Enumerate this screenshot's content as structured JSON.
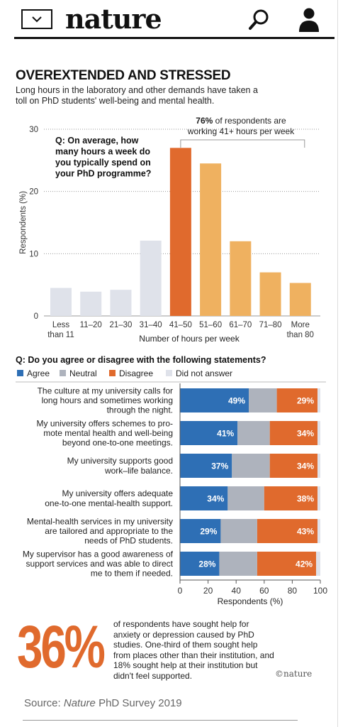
{
  "header": {
    "menu_icon": "chevron-down-icon",
    "logo": "nature",
    "search_icon": "search-icon",
    "user_icon": "user-icon"
  },
  "infographic": {
    "title": "OVEREXTENDED AND STRESSED",
    "subtitle": "Long hours in the laboratory and other demands have taken a toll on PhD students' well-being and mental health."
  },
  "chart_data": [
    {
      "type": "bar",
      "question": "Q: On average, how many hours a week do you typically spend on your PhD programme?",
      "categories": [
        "Less than 11",
        "11–20",
        "21–30",
        "31–40",
        "41–50",
        "51–60",
        "61–70",
        "71–80",
        "More than 80"
      ],
      "category_lines": [
        [
          "Less",
          "than 11"
        ],
        [
          "11–20"
        ],
        [
          "21–30"
        ],
        [
          "31–40"
        ],
        [
          "41–50"
        ],
        [
          "51–60"
        ],
        [
          "61–70"
        ],
        [
          "71–80"
        ],
        [
          "More",
          "than 80"
        ]
      ],
      "values": [
        4.5,
        3.9,
        4.2,
        12.1,
        27.0,
        24.5,
        12.0,
        7.0,
        5.3
      ],
      "colors": [
        "#dfe2ea",
        "#dfe2ea",
        "#dfe2ea",
        "#dfe2ea",
        "#e06a2d",
        "#efb160",
        "#efb160",
        "#efb160",
        "#efb160"
      ],
      "xlabel": "Number of hours per week",
      "ylabel": "Respondents (%)",
      "ylim": [
        0,
        30
      ],
      "yticks": [
        0,
        10,
        20,
        30
      ],
      "annotation": {
        "bold": "76%",
        "line1": " of respondents are",
        "line2": "working 41+ hours per week"
      }
    },
    {
      "type": "bar",
      "orientation": "horizontal-stacked",
      "question": "Q: Do you agree or disagree with the following statements?",
      "legend": [
        {
          "label": "Agree",
          "color": "#2e6fb5"
        },
        {
          "label": "Neutral",
          "color": "#aeb3bd"
        },
        {
          "label": "Disagree",
          "color": "#e06a2d"
        },
        {
          "label": "Did not answer",
          "color": "#dfe2ea"
        }
      ],
      "categories": [
        [
          "The culture at my university calls for",
          "long hours and sometimes working",
          "through the night."
        ],
        [
          "My university offers schemes to pro-",
          "mote mental health and well-being",
          "beyond one-to-one meetings."
        ],
        [
          "My university supports good",
          "work–life balance."
        ],
        [
          "My university offers adequate",
          "one-to-one mental-health support."
        ],
        [
          "Mental-health services in my university",
          "are tailored and appropriate to the",
          "needs of PhD students."
        ],
        [
          "My supervisor has a good awareness of",
          "support services and was able to direct",
          "me to them if needed."
        ]
      ],
      "series": [
        {
          "name": "Agree",
          "values": [
            49,
            41,
            37,
            34,
            29,
            28
          ]
        },
        {
          "name": "Neutral",
          "values": [
            20,
            23,
            27,
            26,
            26,
            27
          ]
        },
        {
          "name": "Disagree",
          "values": [
            29,
            34,
            34,
            38,
            43,
            42
          ]
        },
        {
          "name": "Did not answer",
          "values": [
            2,
            2,
            2,
            2,
            2,
            3
          ]
        }
      ],
      "value_labels": {
        "Agree": [
          "49%",
          "41%",
          "37%",
          "34%",
          "29%",
          "28%"
        ],
        "Disagree": [
          "29%",
          "34%",
          "34%",
          "38%",
          "43%",
          "42%"
        ]
      },
      "xlabel": "Respondents (%)",
      "xlim": [
        0,
        100
      ],
      "xticks": [
        0,
        20,
        40,
        60,
        80,
        100
      ]
    }
  ],
  "callout": {
    "big_number": "36%",
    "text": "of respondents have sought help for anxiety or depression caused by PhD studies. One-third of them sought help from places other than their institution, and 18% sought help at their institution but didn't feel supported.",
    "credit": "©nature"
  },
  "source": {
    "prefix": "Source: ",
    "italic": "Nature",
    "suffix": " PhD Survey 2019"
  }
}
